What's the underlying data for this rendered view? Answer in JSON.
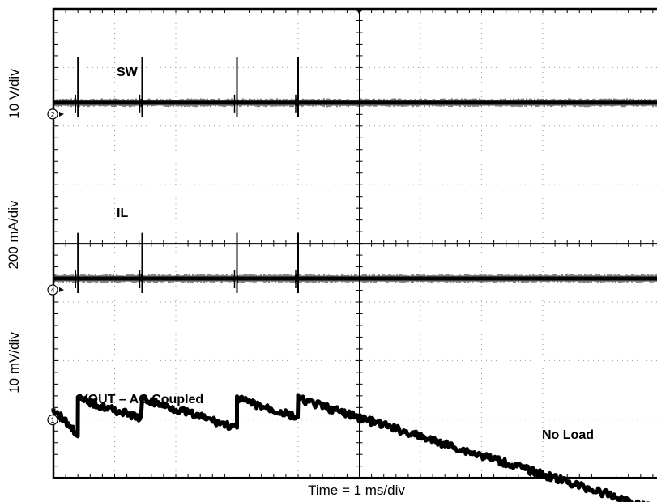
{
  "chart_data": {
    "type": "line",
    "title": "",
    "xlabel": "Time = 1 ms/div",
    "x_divisions": 10,
    "y_divisions": 8,
    "grid": true,
    "channel_scales": [
      "10 V/div",
      "200 mA/div",
      "10 mV/div"
    ],
    "series": [
      {
        "name": "SW",
        "channel": 2,
        "scale": "10 V/div",
        "baseline_div": 6.4,
        "spike_times_ms": [
          0.4,
          1.45,
          3.0,
          4.0
        ],
        "spike_height_div": 1.0
      },
      {
        "name": "IL",
        "channel": 4,
        "scale": "200 mA/div",
        "baseline_div": 3.4,
        "spike_times_ms": [
          0.4,
          1.45,
          3.0,
          4.0
        ],
        "spike_height_div": 1.0
      },
      {
        "name": "VOUT – AC Coupled",
        "channel": 1,
        "scale": "10 mV/div",
        "coupling": "AC",
        "baseline_div": 1.1,
        "step_times_ms": [
          0.4,
          1.45,
          3.0,
          4.0
        ],
        "step_high_div": 1.35,
        "step_low_div": 0.85
      }
    ],
    "annotations": [
      "No Load"
    ],
    "channel_markers": [
      "2",
      "4",
      "1"
    ]
  }
}
